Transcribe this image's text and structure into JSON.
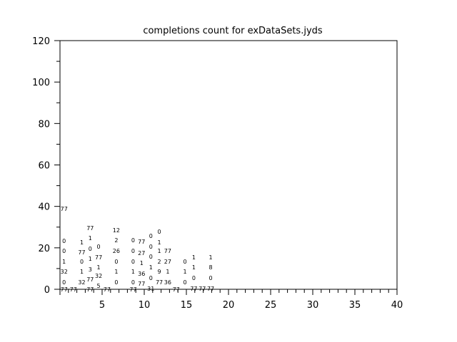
{
  "chart_data": {
    "type": "scatter",
    "title": "completions count for exDataSets.jyds",
    "xlabel": "",
    "ylabel": "",
    "xlim": [
      0,
      40
    ],
    "ylim": [
      0,
      120
    ],
    "xticks": [
      5,
      10,
      15,
      20,
      25,
      30,
      35,
      40
    ],
    "yticks": [
      0,
      20,
      40,
      60,
      80,
      100,
      120
    ],
    "grid": false,
    "marker": "text-label",
    "points": [
      {
        "x": 0.4,
        "y": 38.9,
        "label": "77"
      },
      {
        "x": 0.4,
        "y": 23.4,
        "label": "0"
      },
      {
        "x": 0.4,
        "y": 18.6,
        "label": "0"
      },
      {
        "x": 0.4,
        "y": 13.4,
        "label": "1"
      },
      {
        "x": 0.4,
        "y": 8.6,
        "label": "32"
      },
      {
        "x": 0.4,
        "y": 3.4,
        "label": "0"
      },
      {
        "x": 0.4,
        "y": 0,
        "label": "77"
      },
      {
        "x": 1.5,
        "y": 0,
        "label": "77"
      },
      {
        "x": 2.5,
        "y": 22.7,
        "label": "1"
      },
      {
        "x": 2.5,
        "y": 17.9,
        "label": "77"
      },
      {
        "x": 2.5,
        "y": 13.4,
        "label": "0"
      },
      {
        "x": 2.5,
        "y": 8.6,
        "label": "1"
      },
      {
        "x": 2.5,
        "y": 3.4,
        "label": "32"
      },
      {
        "x": 3.5,
        "y": 29.6,
        "label": "77"
      },
      {
        "x": 3.5,
        "y": 24.8,
        "label": "1"
      },
      {
        "x": 3.5,
        "y": 19.6,
        "label": "0"
      },
      {
        "x": 3.5,
        "y": 14.8,
        "label": "1"
      },
      {
        "x": 3.5,
        "y": 9.6,
        "label": "3"
      },
      {
        "x": 3.5,
        "y": 4.8,
        "label": "77"
      },
      {
        "x": 3.5,
        "y": 0,
        "label": "77"
      },
      {
        "x": 4.5,
        "y": 20.6,
        "label": "0"
      },
      {
        "x": 4.5,
        "y": 15.5,
        "label": "77"
      },
      {
        "x": 4.5,
        "y": 10.7,
        "label": "1"
      },
      {
        "x": 4.5,
        "y": 6.5,
        "label": "32"
      },
      {
        "x": 4.5,
        "y": 1.7,
        "label": "5"
      },
      {
        "x": 5.5,
        "y": 0,
        "label": "77"
      },
      {
        "x": 6.6,
        "y": 28.5,
        "label": "12"
      },
      {
        "x": 6.6,
        "y": 23.7,
        "label": "2"
      },
      {
        "x": 6.6,
        "y": 18.6,
        "label": "26"
      },
      {
        "x": 6.6,
        "y": 13.4,
        "label": "0"
      },
      {
        "x": 6.6,
        "y": 8.6,
        "label": "1"
      },
      {
        "x": 6.6,
        "y": 3.4,
        "label": "0"
      },
      {
        "x": 8.6,
        "y": 23.7,
        "label": "0"
      },
      {
        "x": 8.6,
        "y": 18.6,
        "label": "0"
      },
      {
        "x": 8.6,
        "y": 13.4,
        "label": "0"
      },
      {
        "x": 8.6,
        "y": 8.6,
        "label": "1"
      },
      {
        "x": 8.6,
        "y": 3.4,
        "label": "0"
      },
      {
        "x": 8.6,
        "y": 0,
        "label": "77"
      },
      {
        "x": 9.6,
        "y": 23,
        "label": "77"
      },
      {
        "x": 9.6,
        "y": 17.5,
        "label": "27"
      },
      {
        "x": 9.6,
        "y": 12.7,
        "label": "1"
      },
      {
        "x": 9.6,
        "y": 7.6,
        "label": "36"
      },
      {
        "x": 9.6,
        "y": 2.8,
        "label": "77"
      },
      {
        "x": 10.7,
        "y": 25.8,
        "label": "0"
      },
      {
        "x": 10.7,
        "y": 20.6,
        "label": "0"
      },
      {
        "x": 10.7,
        "y": 15.8,
        "label": "0"
      },
      {
        "x": 10.7,
        "y": 10.7,
        "label": "1"
      },
      {
        "x": 10.7,
        "y": 5.5,
        "label": "0"
      },
      {
        "x": 10.7,
        "y": 0.3,
        "label": "31"
      },
      {
        "x": 11.7,
        "y": 27.9,
        "label": "0"
      },
      {
        "x": 11.7,
        "y": 22.7,
        "label": "1"
      },
      {
        "x": 11.7,
        "y": 18.6,
        "label": "1"
      },
      {
        "x": 11.7,
        "y": 13.4,
        "label": "2"
      },
      {
        "x": 11.7,
        "y": 8.6,
        "label": "9"
      },
      {
        "x": 11.7,
        "y": 3.4,
        "label": "77"
      },
      {
        "x": 12.7,
        "y": 18.6,
        "label": "77"
      },
      {
        "x": 12.7,
        "y": 13.4,
        "label": "27"
      },
      {
        "x": 12.7,
        "y": 8.6,
        "label": "1"
      },
      {
        "x": 12.7,
        "y": 3.4,
        "label": "36"
      },
      {
        "x": 13.7,
        "y": 0,
        "label": "77"
      },
      {
        "x": 14.75,
        "y": 13.4,
        "label": "0"
      },
      {
        "x": 14.75,
        "y": 8.6,
        "label": "1"
      },
      {
        "x": 14.75,
        "y": 3.4,
        "label": "0"
      },
      {
        "x": 15.8,
        "y": 15.5,
        "label": "1"
      },
      {
        "x": 15.8,
        "y": 10.7,
        "label": "1"
      },
      {
        "x": 15.8,
        "y": 5.5,
        "label": "0"
      },
      {
        "x": 15.8,
        "y": 0.3,
        "label": "77"
      },
      {
        "x": 16.8,
        "y": 0.3,
        "label": "77"
      },
      {
        "x": 17.8,
        "y": 15.5,
        "label": "1"
      },
      {
        "x": 17.8,
        "y": 10.7,
        "label": "8"
      },
      {
        "x": 17.8,
        "y": 5.5,
        "label": "0"
      },
      {
        "x": 17.8,
        "y": 0.3,
        "label": "77"
      }
    ]
  }
}
